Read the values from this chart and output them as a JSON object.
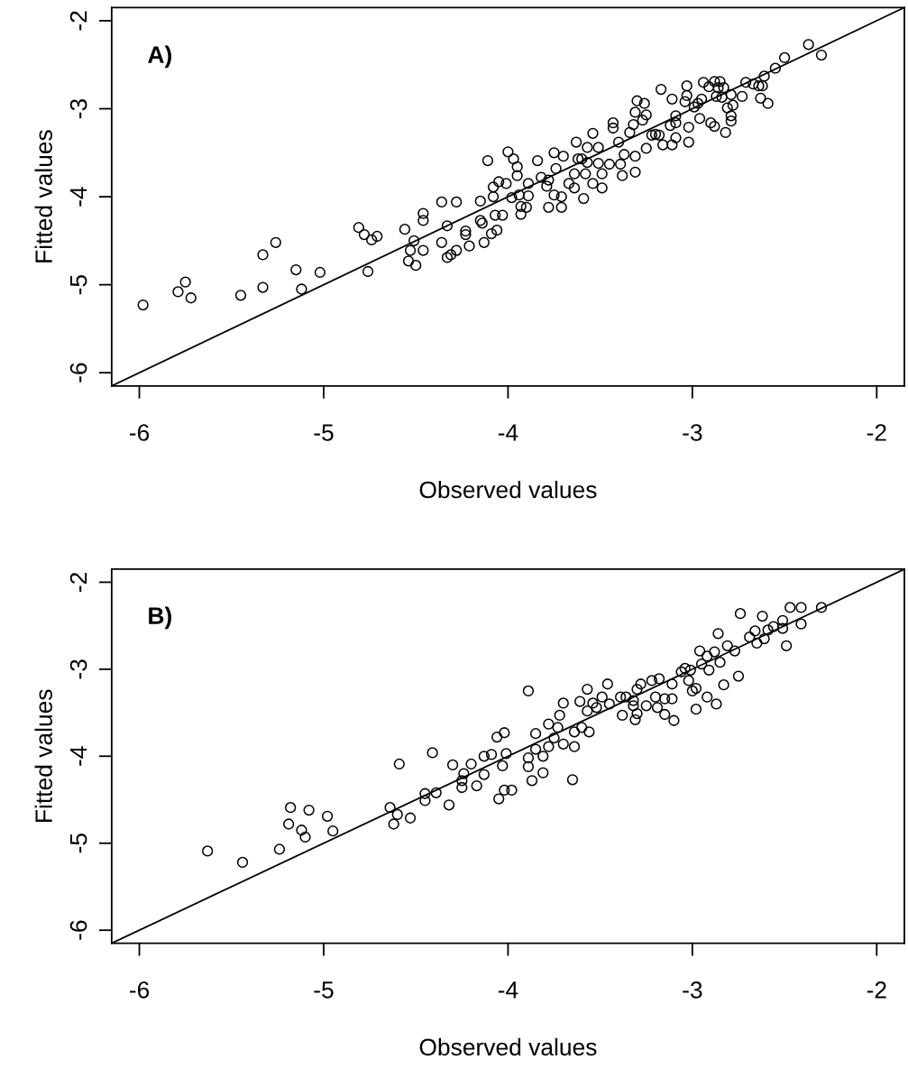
{
  "chart_data": [
    {
      "type": "scatter",
      "xlabel": "Observed values",
      "ylabel": "Fitted values",
      "annotations": [
        "A)"
      ],
      "xlim": [
        -6.15,
        -1.85
      ],
      "ylim": [
        -6.15,
        -1.85
      ],
      "xticks": [
        -6,
        -5,
        -4,
        -3,
        -2
      ],
      "yticks": [
        -6,
        -5,
        -4,
        -3,
        -2
      ],
      "grid": false,
      "series": [
        {
          "marker": "circle",
          "color": "#000000",
          "x": [
            -5.98,
            -5.79,
            -5.75,
            -5.72,
            -5.45,
            -5.33,
            -5.33,
            -5.26,
            -5.15,
            -5.12,
            -5.02,
            -4.81,
            -4.78,
            -4.74,
            -4.71,
            -4.76,
            -4.56,
            -4.51,
            -4.53,
            -4.54,
            -4.5,
            -4.46,
            -4.46,
            -4.46,
            -4.36,
            -4.28,
            -4.33,
            -4.36,
            -4.33,
            -4.31,
            -4.28,
            -4.23,
            -4.23,
            -4.21,
            -4.15,
            -4.15,
            -4.14,
            -4.13,
            -4.09,
            -4.06,
            -4.07,
            -4.03,
            -4.11,
            -4.08,
            -4.08,
            -4.05,
            -4.01,
            -4.0,
            -3.97,
            -3.95,
            -3.95,
            -3.98,
            -3.94,
            -3.93,
            -3.93,
            -3.9,
            -3.89,
            -3.89,
            -3.84,
            -3.82,
            -3.78,
            -3.79,
            -3.78,
            -3.75,
            -3.74,
            -3.75,
            -3.71,
            -3.71,
            -3.7,
            -3.67,
            -3.64,
            -3.64,
            -3.63,
            -3.62,
            -3.6,
            -3.57,
            -3.59,
            -3.58,
            -3.57,
            -3.54,
            -3.54,
            -3.51,
            -3.51,
            -3.49,
            -3.49,
            -3.45,
            -3.43,
            -3.43,
            -3.4,
            -3.39,
            -3.38,
            -3.37,
            -3.34,
            -3.32,
            -3.31,
            -3.3,
            -3.31,
            -3.31,
            -3.26,
            -3.25,
            -3.27,
            -3.25,
            -3.22,
            -3.2,
            -3.18,
            -3.17,
            -3.16,
            -3.11,
            -3.12,
            -3.11,
            -3.09,
            -3.09,
            -3.09,
            -3.03,
            -3.03,
            -3.02,
            -3.02,
            -3.04,
            -2.99,
            -2.97,
            -2.96,
            -2.95,
            -2.94,
            -2.91,
            -2.9,
            -2.88,
            -2.87,
            -2.88,
            -2.86,
            -2.85,
            -2.84,
            -2.83,
            -2.81,
            -2.82,
            -2.79,
            -2.79,
            -2.78,
            -2.79,
            -2.73,
            -2.71,
            -2.67,
            -2.64,
            -2.61,
            -2.62,
            -2.63,
            -2.59,
            -2.55,
            -2.5,
            -2.37,
            -2.3
          ],
          "values": [
            -5.23,
            -5.08,
            -4.97,
            -5.15,
            -5.12,
            -5.03,
            -4.66,
            -4.52,
            -4.83,
            -5.05,
            -4.86,
            -4.35,
            -4.43,
            -4.49,
            -4.45,
            -4.85,
            -4.37,
            -4.5,
            -4.61,
            -4.73,
            -4.78,
            -4.61,
            -4.19,
            -4.27,
            -4.06,
            -4.06,
            -4.33,
            -4.52,
            -4.69,
            -4.66,
            -4.61,
            -4.39,
            -4.43,
            -4.56,
            -4.05,
            -4.27,
            -4.3,
            -4.52,
            -4.42,
            -4.38,
            -4.21,
            -4.21,
            -3.59,
            -4.0,
            -3.89,
            -3.83,
            -3.85,
            -3.49,
            -3.57,
            -3.66,
            -3.76,
            -4.01,
            -3.98,
            -4.11,
            -4.2,
            -4.12,
            -3.85,
            -3.99,
            -3.59,
            -3.78,
            -3.81,
            -3.88,
            -4.12,
            -3.5,
            -3.68,
            -3.98,
            -4.12,
            -4.0,
            -3.54,
            -3.85,
            -3.9,
            -3.74,
            -3.38,
            -3.57,
            -3.57,
            -3.61,
            -4.02,
            -3.74,
            -3.44,
            -3.28,
            -3.85,
            -3.44,
            -3.62,
            -3.9,
            -3.74,
            -3.63,
            -3.16,
            -3.22,
            -3.38,
            -3.63,
            -3.76,
            -3.52,
            -3.27,
            -3.18,
            -3.04,
            -2.91,
            -3.54,
            -3.72,
            -2.94,
            -3.07,
            -3.13,
            -3.45,
            -3.3,
            -3.29,
            -3.3,
            -2.78,
            -3.41,
            -2.89,
            -3.19,
            -3.41,
            -3.08,
            -3.16,
            -3.33,
            -2.74,
            -2.85,
            -3.21,
            -3.38,
            -2.92,
            -2.98,
            -2.94,
            -3.11,
            -2.89,
            -2.7,
            -2.75,
            -3.16,
            -2.69,
            -2.86,
            -3.2,
            -2.76,
            -2.69,
            -2.87,
            -2.76,
            -2.99,
            -3.27,
            -3.08,
            -2.84,
            -2.96,
            -3.14,
            -2.86,
            -2.7,
            -2.72,
            -2.74,
            -2.63,
            -2.74,
            -2.88,
            -2.94,
            -2.54,
            -2.42,
            -2.27,
            -2.39
          ]
        },
        {
          "type": "line",
          "marker": "none",
          "color": "#000000",
          "x": [
            -6.15,
            -1.85
          ],
          "values": [
            -6.15,
            -1.85
          ]
        }
      ]
    },
    {
      "type": "scatter",
      "xlabel": "Observed values",
      "ylabel": "Fitted values",
      "annotations": [
        "B)"
      ],
      "xlim": [
        -6.15,
        -1.85
      ],
      "ylim": [
        -6.15,
        -1.85
      ],
      "xticks": [
        -6,
        -5,
        -4,
        -3,
        -2
      ],
      "yticks": [
        -6,
        -5,
        -4,
        -3,
        -2
      ],
      "grid": false,
      "series": [
        {
          "marker": "circle",
          "color": "#000000",
          "x": [
            -5.63,
            -5.44,
            -5.24,
            -5.18,
            -5.19,
            -5.12,
            -5.1,
            -5.08,
            -4.98,
            -4.95,
            -4.64,
            -4.6,
            -4.62,
            -4.53,
            -4.59,
            -4.41,
            -4.45,
            -4.45,
            -4.39,
            -4.32,
            -4.3,
            -4.25,
            -4.25,
            -4.24,
            -4.2,
            -4.17,
            -4.13,
            -4.13,
            -4.09,
            -4.06,
            -4.02,
            -4.01,
            -4.03,
            -4.05,
            -4.02,
            -3.98,
            -3.89,
            -3.89,
            -3.89,
            -3.87,
            -3.85,
            -3.85,
            -3.81,
            -3.81,
            -3.78,
            -3.78,
            -3.75,
            -3.73,
            -3.72,
            -3.7,
            -3.7,
            -3.65,
            -3.64,
            -3.64,
            -3.61,
            -3.6,
            -3.57,
            -3.56,
            -3.57,
            -3.54,
            -3.52,
            -3.49,
            -3.46,
            -3.45,
            -3.39,
            -3.38,
            -3.36,
            -3.32,
            -3.32,
            -3.3,
            -3.3,
            -3.31,
            -3.28,
            -3.25,
            -3.22,
            -3.2,
            -3.18,
            -3.19,
            -3.15,
            -3.15,
            -3.11,
            -3.11,
            -3.1,
            -3.06,
            -3.04,
            -3.02,
            -3.01,
            -3.0,
            -2.98,
            -2.98,
            -2.96,
            -2.95,
            -2.92,
            -2.91,
            -2.92,
            -2.88,
            -2.87,
            -2.85,
            -2.86,
            -2.83,
            -2.81,
            -2.77,
            -2.75,
            -2.74,
            -2.69,
            -2.66,
            -2.65,
            -2.62,
            -2.61,
            -2.59,
            -2.56,
            -2.51,
            -2.51,
            -2.49,
            -2.47,
            -2.41,
            -2.41,
            -2.3
          ],
          "values": [
            -5.09,
            -5.22,
            -5.07,
            -4.59,
            -4.78,
            -4.85,
            -4.93,
            -4.62,
            -4.69,
            -4.86,
            -4.59,
            -4.67,
            -4.78,
            -4.71,
            -4.09,
            -3.96,
            -4.43,
            -4.51,
            -4.42,
            -4.56,
            -4.1,
            -4.28,
            -4.36,
            -4.2,
            -4.09,
            -4.34,
            -4.21,
            -4.0,
            -3.98,
            -3.78,
            -3.73,
            -3.97,
            -4.11,
            -4.49,
            -4.39,
            -4.39,
            -4.02,
            -4.12,
            -3.25,
            -4.28,
            -3.74,
            -3.92,
            -4.19,
            -4.0,
            -3.63,
            -3.89,
            -3.79,
            -3.67,
            -3.53,
            -3.86,
            -3.39,
            -4.27,
            -3.89,
            -3.72,
            -3.37,
            -3.67,
            -3.23,
            -3.72,
            -3.48,
            -3.39,
            -3.44,
            -3.32,
            -3.17,
            -3.4,
            -3.32,
            -3.53,
            -3.32,
            -3.36,
            -3.42,
            -3.23,
            -3.51,
            -3.58,
            -3.17,
            -3.42,
            -3.13,
            -3.32,
            -3.11,
            -3.44,
            -3.34,
            -3.52,
            -3.34,
            -3.17,
            -3.59,
            -3.03,
            -2.99,
            -3.13,
            -3.01,
            -3.25,
            -3.22,
            -3.46,
            -2.79,
            -2.94,
            -2.85,
            -3.01,
            -3.32,
            -2.8,
            -3.4,
            -2.92,
            -2.59,
            -3.18,
            -2.73,
            -2.79,
            -3.08,
            -2.36,
            -2.63,
            -2.56,
            -2.7,
            -2.39,
            -2.65,
            -2.55,
            -2.51,
            -2.53,
            -2.44,
            -2.73,
            -2.29,
            -2.29,
            -2.48,
            -2.29
          ]
        },
        {
          "type": "line",
          "marker": "none",
          "color": "#000000",
          "x": [
            -6.15,
            -1.85
          ],
          "values": [
            -6.15,
            -1.85
          ]
        }
      ]
    }
  ]
}
